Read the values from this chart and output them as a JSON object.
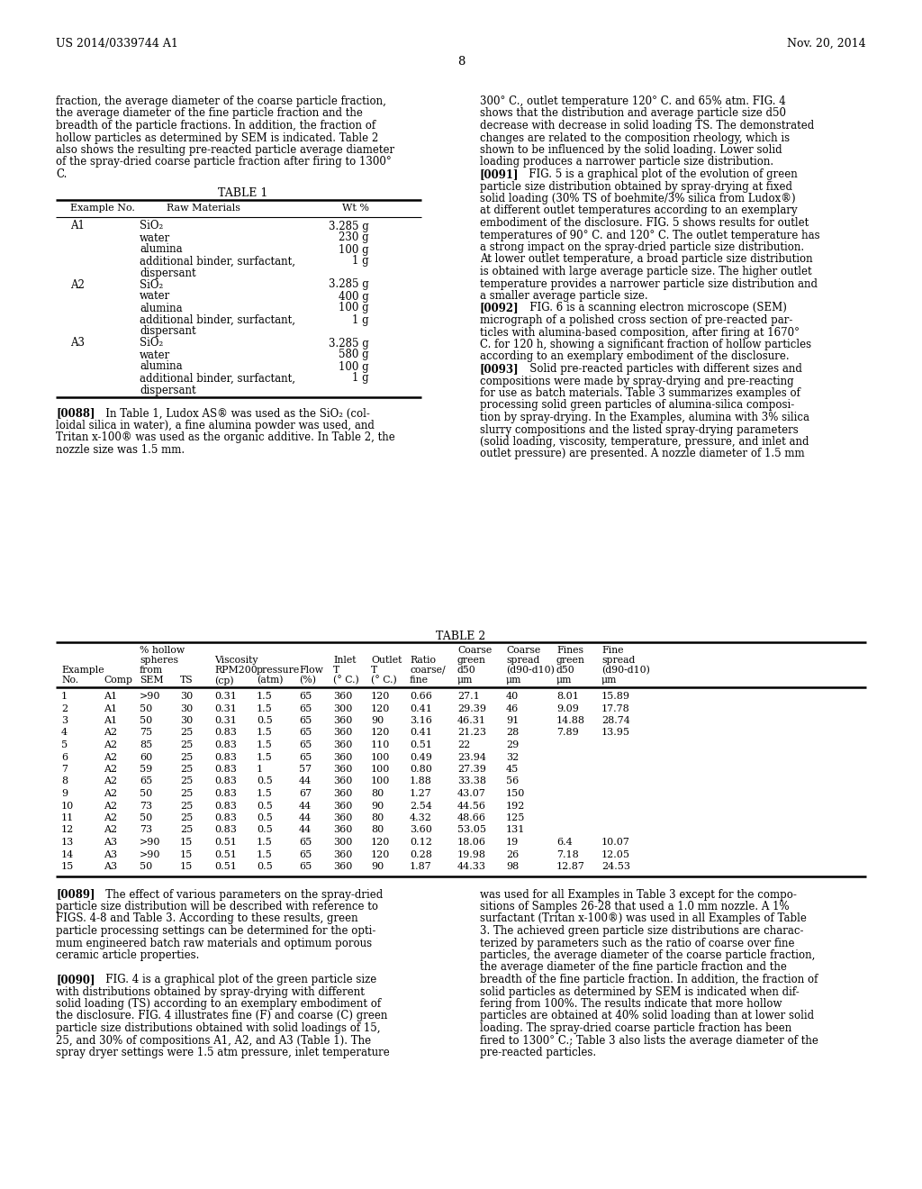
{
  "header_left": "US 2014/0339744 A1",
  "header_right": "Nov. 20, 2014",
  "page_number": "8",
  "background_color": "#ffffff",
  "text_color": "#000000",
  "left_col_text": [
    "fraction, the average diameter of the coarse particle fraction,",
    "the average diameter of the fine particle fraction and the",
    "breadth of the particle fractions. In addition, the fraction of",
    "hollow particles as determined by SEM is indicated. Table 2",
    "also shows the resulting pre-reacted particle average diameter",
    "of the spray-dried coarse particle fraction after firing to 1300°",
    "C."
  ],
  "right_col_text_top": [
    [
      "normal",
      "300° C., outlet temperature 120° C. and 65% atm. FIG. 4"
    ],
    [
      "normal",
      "shows that the distribution and average particle size d50"
    ],
    [
      "normal",
      "decrease with decrease in solid loading TS. The demonstrated"
    ],
    [
      "normal",
      "changes are related to the composition rheology, which is"
    ],
    [
      "normal",
      "shown to be influenced by the solid loading. Lower solid"
    ],
    [
      "normal",
      "loading produces a narrower particle size distribution."
    ],
    [
      "bold_prefix",
      "[0091]",
      "   FIG. 5 is a graphical plot of the evolution of green"
    ],
    [
      "normal",
      "particle size distribution obtained by spray-drying at fixed"
    ],
    [
      "normal",
      "solid loading (30% TS of boehmite/3% silica from Ludox®)"
    ],
    [
      "normal",
      "at different outlet temperatures according to an exemplary"
    ],
    [
      "normal",
      "embodiment of the disclosure. FIG. 5 shows results for outlet"
    ],
    [
      "normal",
      "temperatures of 90° C. and 120° C. The outlet temperature has"
    ],
    [
      "normal",
      "a strong impact on the spray-dried particle size distribution."
    ],
    [
      "normal",
      "At lower outlet temperature, a broad particle size distribution"
    ],
    [
      "normal",
      "is obtained with large average particle size. The higher outlet"
    ],
    [
      "normal",
      "temperature provides a narrower particle size distribution and"
    ],
    [
      "normal",
      "a smaller average particle size."
    ],
    [
      "bold_prefix",
      "[0092]",
      "   FIG. 6 is a scanning electron microscope (SEM)"
    ],
    [
      "normal",
      "micrograph of a polished cross section of pre-reacted par-"
    ],
    [
      "normal",
      "ticles with alumina-based composition, after firing at 1670°"
    ],
    [
      "normal",
      "C. for 120 h, showing a significant fraction of hollow particles"
    ],
    [
      "normal",
      "according to an exemplary embodiment of the disclosure."
    ],
    [
      "bold_prefix",
      "[0093]",
      "   Solid pre-reacted particles with different sizes and"
    ],
    [
      "normal",
      "compositions were made by spray-drying and pre-reacting"
    ],
    [
      "normal",
      "for use as batch materials. Table 3 summarizes examples of"
    ],
    [
      "normal",
      "processing solid green particles of alumina-silica composi-"
    ],
    [
      "normal",
      "tion by spray-drying. In the Examples, alumina with 3% silica"
    ],
    [
      "normal",
      "slurry compositions and the listed spray-drying parameters"
    ],
    [
      "normal",
      "(solid loading, viscosity, temperature, pressure, and inlet and"
    ],
    [
      "normal",
      "outlet pressure) are presented. A nozzle diameter of 1.5 mm"
    ]
  ],
  "table1_title": "TABLE 1",
  "table1_data": [
    [
      "A1",
      "SiO₂",
      "3.285 g"
    ],
    [
      "",
      "water",
      "230 g"
    ],
    [
      "",
      "alumina",
      "100 g"
    ],
    [
      "",
      "additional binder, surfactant,",
      "1 g"
    ],
    [
      "",
      "dispersant",
      ""
    ],
    [
      "A2",
      "SiO₂",
      "3.285 g"
    ],
    [
      "",
      "water",
      "400 g"
    ],
    [
      "",
      "alumina",
      "100 g"
    ],
    [
      "",
      "additional binder, surfactant,",
      "1 g"
    ],
    [
      "",
      "dispersant",
      ""
    ],
    [
      "A3",
      "SiO₂",
      "3.285 g"
    ],
    [
      "",
      "water",
      "580 g"
    ],
    [
      "",
      "alumina",
      "100 g"
    ],
    [
      "",
      "additional binder, surfactant,",
      "1 g"
    ],
    [
      "",
      "dispersant",
      ""
    ]
  ],
  "table2_title": "TABLE 2",
  "table2_data": [
    [
      "1",
      "A1",
      ">90",
      "30",
      "0.31",
      "1.5",
      "65",
      "360",
      "120",
      "0.66",
      "27.1",
      "40",
      "8.01",
      "15.89"
    ],
    [
      "2",
      "A1",
      "50",
      "30",
      "0.31",
      "1.5",
      "65",
      "300",
      "120",
      "0.41",
      "29.39",
      "46",
      "9.09",
      "17.78"
    ],
    [
      "3",
      "A1",
      "50",
      "30",
      "0.31",
      "0.5",
      "65",
      "360",
      "90",
      "3.16",
      "46.31",
      "91",
      "14.88",
      "28.74"
    ],
    [
      "4",
      "A2",
      "75",
      "25",
      "0.83",
      "1.5",
      "65",
      "360",
      "120",
      "0.41",
      "21.23",
      "28",
      "7.89",
      "13.95"
    ],
    [
      "5",
      "A2",
      "85",
      "25",
      "0.83",
      "1.5",
      "65",
      "360",
      "110",
      "0.51",
      "22",
      "29",
      "",
      ""
    ],
    [
      "6",
      "A2",
      "60",
      "25",
      "0.83",
      "1.5",
      "65",
      "360",
      "100",
      "0.49",
      "23.94",
      "32",
      "",
      ""
    ],
    [
      "7",
      "A2",
      "59",
      "25",
      "0.83",
      "1",
      "57",
      "360",
      "100",
      "0.80",
      "27.39",
      "45",
      "",
      ""
    ],
    [
      "8",
      "A2",
      "65",
      "25",
      "0.83",
      "0.5",
      "44",
      "360",
      "100",
      "1.88",
      "33.38",
      "56",
      "",
      ""
    ],
    [
      "9",
      "A2",
      "50",
      "25",
      "0.83",
      "1.5",
      "67",
      "360",
      "80",
      "1.27",
      "43.07",
      "150",
      "",
      ""
    ],
    [
      "10",
      "A2",
      "73",
      "25",
      "0.83",
      "0.5",
      "44",
      "360",
      "90",
      "2.54",
      "44.56",
      "192",
      "",
      ""
    ],
    [
      "11",
      "A2",
      "50",
      "25",
      "0.83",
      "0.5",
      "44",
      "360",
      "80",
      "4.32",
      "48.66",
      "125",
      "",
      ""
    ],
    [
      "12",
      "A2",
      "73",
      "25",
      "0.83",
      "0.5",
      "44",
      "360",
      "80",
      "3.60",
      "53.05",
      "131",
      "",
      ""
    ],
    [
      "13",
      "A3",
      ">90",
      "15",
      "0.51",
      "1.5",
      "65",
      "300",
      "120",
      "0.12",
      "18.06",
      "19",
      "6.4",
      "10.07"
    ],
    [
      "14",
      "A3",
      ">90",
      "15",
      "0.51",
      "1.5",
      "65",
      "360",
      "120",
      "0.28",
      "19.98",
      "26",
      "7.18",
      "12.05"
    ],
    [
      "15",
      "A3",
      "50",
      "15",
      "0.51",
      "0.5",
      "65",
      "360",
      "90",
      "1.87",
      "44.33",
      "98",
      "12.87",
      "24.53"
    ]
  ],
  "bot_left_lines": [
    [
      "bold_prefix",
      "[0089]",
      "   The effect of various parameters on the spray-dried"
    ],
    [
      "normal",
      "particle size distribution will be described with reference to"
    ],
    [
      "normal",
      "FIGS. 4-8 and Table 3. According to these results, green"
    ],
    [
      "normal",
      "particle processing settings can be determined for the opti-"
    ],
    [
      "normal",
      "mum engineered batch raw materials and optimum porous"
    ],
    [
      "normal",
      "ceramic article properties."
    ],
    [
      "normal",
      ""
    ],
    [
      "bold_prefix",
      "[0090]",
      "   FIG. 4 is a graphical plot of the green particle size"
    ],
    [
      "normal",
      "with distributions obtained by spray-drying with different"
    ],
    [
      "normal",
      "solid loading (TS) according to an exemplary embodiment of"
    ],
    [
      "normal",
      "the disclosure. FIG. 4 illustrates fine (F) and coarse (C) green"
    ],
    [
      "normal",
      "particle size distributions obtained with solid loadings of 15,"
    ],
    [
      "normal",
      "25, and 30% of compositions A1, A2, and A3 (Table 1). The"
    ],
    [
      "normal",
      "spray dryer settings were 1.5 atm pressure, inlet temperature"
    ]
  ],
  "bot_right_lines": [
    [
      "normal",
      "was used for all Examples in Table 3 except for the compo-"
    ],
    [
      "normal",
      "sitions of Samples 26-28 that used a 1.0 mm nozzle. A 1%"
    ],
    [
      "normal",
      "surfactant (Tritan x-100®) was used in all Examples of Table"
    ],
    [
      "normal",
      "3. The achieved green particle size distributions are charac-"
    ],
    [
      "normal",
      "terized by parameters such as the ratio of coarse over fine"
    ],
    [
      "normal",
      "particles, the average diameter of the coarse particle fraction,"
    ],
    [
      "normal",
      "the average diameter of the fine particle fraction and the"
    ],
    [
      "normal",
      "breadth of the fine particle fraction. In addition, the fraction of"
    ],
    [
      "normal",
      "solid particles as determined by SEM is indicated when dif-"
    ],
    [
      "normal",
      "fering from 100%. The results indicate that more hollow"
    ],
    [
      "normal",
      "particles are obtained at 40% solid loading than at lower solid"
    ],
    [
      "normal",
      "loading. The spray-dried coarse particle fraction has been"
    ],
    [
      "normal",
      "fired to 1300° C.; Table 3 also lists the average diameter of the"
    ],
    [
      "normal",
      "pre-reacted particles."
    ]
  ]
}
